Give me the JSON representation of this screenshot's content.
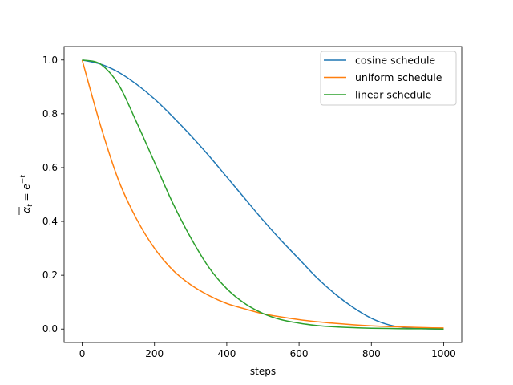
{
  "chart_data": {
    "type": "line",
    "xlabel": "steps",
    "ylabel_math": {
      "base": "α",
      "subscript": "t",
      "equals": " = e",
      "superscript": "−t"
    },
    "xlim": [
      -50,
      1050
    ],
    "ylim": [
      -0.05,
      1.05
    ],
    "xticks": [
      0,
      200,
      400,
      600,
      800,
      1000
    ],
    "xtick_labels": [
      "0",
      "200",
      "400",
      "600",
      "800",
      "1000"
    ],
    "yticks": [
      0.0,
      0.2,
      0.4,
      0.6,
      0.8,
      1.0
    ],
    "ytick_labels": [
      "0.0",
      "0.2",
      "0.4",
      "0.6",
      "0.8",
      "1.0"
    ],
    "legend_position": "top-right",
    "x": [
      0,
      50,
      100,
      150,
      200,
      250,
      300,
      350,
      400,
      450,
      500,
      550,
      600,
      650,
      700,
      750,
      800,
      850,
      900,
      950,
      1000
    ],
    "series": [
      {
        "name": "cosine schedule",
        "color": "#1f77b4",
        "values": [
          1.0,
          0.985,
          0.955,
          0.91,
          0.855,
          0.79,
          0.72,
          0.645,
          0.565,
          0.485,
          0.405,
          0.33,
          0.26,
          0.19,
          0.13,
          0.08,
          0.04,
          0.015,
          0.004,
          0.001,
          0.0
        ]
      },
      {
        "name": "uniform schedule",
        "color": "#ff7f0e",
        "values": [
          1.0,
          0.76,
          0.555,
          0.41,
          0.3,
          0.22,
          0.165,
          0.125,
          0.095,
          0.075,
          0.057,
          0.045,
          0.035,
          0.027,
          0.021,
          0.016,
          0.012,
          0.009,
          0.007,
          0.005,
          0.004
        ]
      },
      {
        "name": "linear schedule",
        "color": "#2ca02c",
        "values": [
          1.0,
          0.985,
          0.91,
          0.77,
          0.62,
          0.47,
          0.34,
          0.23,
          0.15,
          0.095,
          0.058,
          0.035,
          0.022,
          0.013,
          0.008,
          0.005,
          0.003,
          0.002,
          0.001,
          0.001,
          0.0
        ]
      }
    ]
  }
}
